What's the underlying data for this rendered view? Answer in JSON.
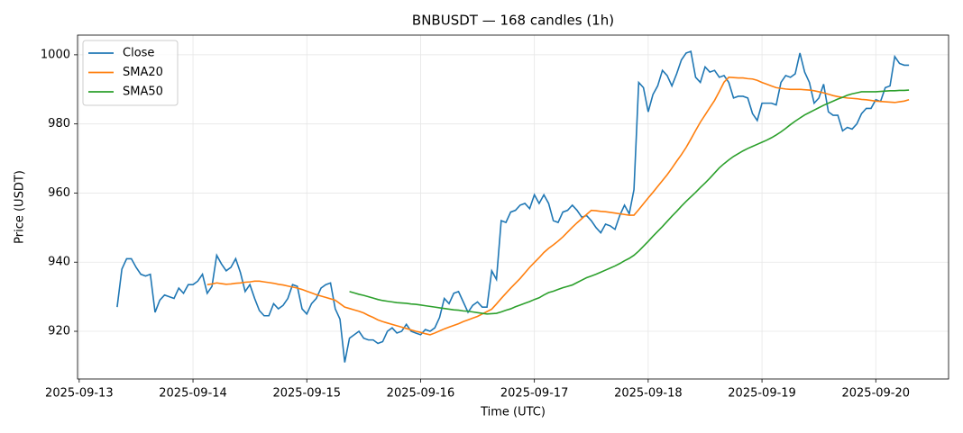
{
  "chart_data": {
    "type": "line",
    "title": "BNBUSDT — 168 candles (1h)",
    "x_label": "Time (UTC)",
    "y_label": "Price (USDT)",
    "x": [
      "2025-09-13 08:00",
      "2025-09-13 09:00",
      "2025-09-13 10:00",
      "2025-09-13 11:00",
      "2025-09-13 12:00",
      "2025-09-13 13:00",
      "2025-09-13 14:00",
      "2025-09-13 15:00",
      "2025-09-13 16:00",
      "2025-09-13 17:00",
      "2025-09-13 18:00",
      "2025-09-13 19:00",
      "2025-09-13 20:00",
      "2025-09-13 21:00",
      "2025-09-13 22:00",
      "2025-09-13 23:00",
      "2025-09-14 00:00",
      "2025-09-14 01:00",
      "2025-09-14 02:00",
      "2025-09-14 03:00",
      "2025-09-14 04:00",
      "2025-09-14 05:00",
      "2025-09-14 06:00",
      "2025-09-14 07:00",
      "2025-09-14 08:00",
      "2025-09-14 09:00",
      "2025-09-14 10:00",
      "2025-09-14 11:00",
      "2025-09-14 12:00",
      "2025-09-14 13:00",
      "2025-09-14 14:00",
      "2025-09-14 15:00",
      "2025-09-14 16:00",
      "2025-09-14 17:00",
      "2025-09-14 18:00",
      "2025-09-14 19:00",
      "2025-09-14 20:00",
      "2025-09-14 21:00",
      "2025-09-14 22:00",
      "2025-09-14 23:00",
      "2025-09-15 00:00",
      "2025-09-15 01:00",
      "2025-09-15 02:00",
      "2025-09-15 03:00",
      "2025-09-15 04:00",
      "2025-09-15 05:00",
      "2025-09-15 06:00",
      "2025-09-15 07:00",
      "2025-09-15 08:00",
      "2025-09-15 09:00",
      "2025-09-15 10:00",
      "2025-09-15 11:00",
      "2025-09-15 12:00",
      "2025-09-15 13:00",
      "2025-09-15 14:00",
      "2025-09-15 15:00",
      "2025-09-15 16:00",
      "2025-09-15 17:00",
      "2025-09-15 18:00",
      "2025-09-15 19:00",
      "2025-09-15 20:00",
      "2025-09-15 21:00",
      "2025-09-15 22:00",
      "2025-09-15 23:00",
      "2025-09-16 00:00",
      "2025-09-16 01:00",
      "2025-09-16 02:00",
      "2025-09-16 03:00",
      "2025-09-16 04:00",
      "2025-09-16 05:00",
      "2025-09-16 06:00",
      "2025-09-16 07:00",
      "2025-09-16 08:00",
      "2025-09-16 09:00",
      "2025-09-16 10:00",
      "2025-09-16 11:00",
      "2025-09-16 12:00",
      "2025-09-16 13:00",
      "2025-09-16 14:00",
      "2025-09-16 15:00",
      "2025-09-16 16:00",
      "2025-09-16 17:00",
      "2025-09-16 18:00",
      "2025-09-16 19:00",
      "2025-09-16 20:00",
      "2025-09-16 21:00",
      "2025-09-16 22:00",
      "2025-09-16 23:00",
      "2025-09-17 00:00",
      "2025-09-17 01:00",
      "2025-09-17 02:00",
      "2025-09-17 03:00",
      "2025-09-17 04:00",
      "2025-09-17 05:00",
      "2025-09-17 06:00",
      "2025-09-17 07:00",
      "2025-09-17 08:00",
      "2025-09-17 09:00",
      "2025-09-17 10:00",
      "2025-09-17 11:00",
      "2025-09-17 12:00",
      "2025-09-17 13:00",
      "2025-09-17 14:00",
      "2025-09-17 15:00",
      "2025-09-17 16:00",
      "2025-09-17 17:00",
      "2025-09-17 18:00",
      "2025-09-17 19:00",
      "2025-09-17 20:00",
      "2025-09-17 21:00",
      "2025-09-17 22:00",
      "2025-09-17 23:00",
      "2025-09-18 00:00",
      "2025-09-18 01:00",
      "2025-09-18 02:00",
      "2025-09-18 03:00",
      "2025-09-18 04:00",
      "2025-09-18 05:00",
      "2025-09-18 06:00",
      "2025-09-18 07:00",
      "2025-09-18 08:00",
      "2025-09-18 09:00",
      "2025-09-18 10:00",
      "2025-09-18 11:00",
      "2025-09-18 12:00",
      "2025-09-18 13:00",
      "2025-09-18 14:00",
      "2025-09-18 15:00",
      "2025-09-18 16:00",
      "2025-09-18 17:00",
      "2025-09-18 18:00",
      "2025-09-18 19:00",
      "2025-09-18 20:00",
      "2025-09-18 21:00",
      "2025-09-18 22:00",
      "2025-09-18 23:00",
      "2025-09-19 00:00",
      "2025-09-19 01:00",
      "2025-09-19 02:00",
      "2025-09-19 03:00",
      "2025-09-19 04:00",
      "2025-09-19 05:00",
      "2025-09-19 06:00",
      "2025-09-19 07:00",
      "2025-09-19 08:00",
      "2025-09-19 09:00",
      "2025-09-19 10:00",
      "2025-09-19 11:00",
      "2025-09-19 12:00",
      "2025-09-19 13:00",
      "2025-09-19 14:00",
      "2025-09-19 15:00",
      "2025-09-19 16:00",
      "2025-09-19 17:00",
      "2025-09-19 18:00",
      "2025-09-19 19:00",
      "2025-09-19 20:00",
      "2025-09-19 21:00",
      "2025-09-19 22:00",
      "2025-09-19 23:00",
      "2025-09-20 00:00",
      "2025-09-20 01:00",
      "2025-09-20 02:00",
      "2025-09-20 03:00",
      "2025-09-20 04:00",
      "2025-09-20 05:00",
      "2025-09-20 06:00",
      "2025-09-20 07:00"
    ],
    "series": [
      {
        "name": "Close",
        "color": "#1f77b4",
        "values": [
          927,
          938,
          941,
          941,
          938.5,
          936.5,
          936,
          936.5,
          925.5,
          929,
          930.5,
          930,
          929.5,
          932.5,
          931,
          933.5,
          933.5,
          934.5,
          936.5,
          931,
          933,
          942,
          939.5,
          937.5,
          938.5,
          941,
          937,
          931.5,
          933.5,
          929.5,
          926,
          924.5,
          924.5,
          928,
          926.5,
          927.5,
          929.5,
          933.5,
          933,
          926.5,
          925,
          928,
          929.5,
          932.5,
          933.5,
          934,
          926.5,
          923.5,
          911,
          918,
          919,
          920,
          918,
          917.5,
          917.5,
          916.5,
          917,
          920,
          921,
          919.5,
          920,
          922,
          920,
          919.5,
          919,
          920.5,
          920,
          921,
          924,
          929.5,
          928,
          931,
          931.5,
          928.5,
          925.5,
          927.5,
          928.5,
          927,
          927,
          937.5,
          935,
          952,
          951.5,
          954.5,
          955,
          956.5,
          957,
          955.5,
          959.5,
          957,
          959.5,
          957,
          952,
          951.5,
          954.5,
          955,
          956.5,
          955,
          953,
          953.5,
          952,
          950,
          948.5,
          951,
          950.5,
          949.5,
          953.5,
          956.5,
          954,
          961,
          992,
          990.5,
          983.5,
          988.5,
          991,
          995.5,
          994,
          991,
          994.5,
          998.5,
          1000.5,
          1001,
          993.5,
          992,
          996.5,
          995,
          995.5,
          993.5,
          994,
          992,
          987.5,
          988,
          988,
          987.5,
          983,
          981,
          986,
          986,
          986,
          985.5,
          992,
          994,
          993.5,
          994.5,
          1000.5,
          995,
          992,
          986,
          987.5,
          991.5,
          983.5,
          982.5,
          982.5,
          978,
          979,
          978.5,
          980,
          983,
          984.5,
          984.5,
          987,
          986.5,
          990.5,
          991,
          999.5,
          997.5,
          997,
          997
        ]
      },
      {
        "name": "SMA20",
        "color": "#ff7f0e",
        "values": [
          null,
          null,
          null,
          null,
          null,
          null,
          null,
          null,
          null,
          null,
          null,
          null,
          null,
          null,
          null,
          null,
          null,
          null,
          null,
          933.5,
          933.7,
          934,
          933.8,
          933.6,
          933.7,
          933.9,
          934,
          934.2,
          934.3,
          934.5,
          934.5,
          934.3,
          934.1,
          933.9,
          933.6,
          933.4,
          933.1,
          932.8,
          932.5,
          932.1,
          931.6,
          931.1,
          930.6,
          930.2,
          929.8,
          929.4,
          929,
          928,
          927,
          926.6,
          926.2,
          925.8,
          925.3,
          924.6,
          924,
          923.3,
          922.8,
          922.4,
          922,
          921.6,
          921.2,
          920.8,
          920.4,
          920,
          919.7,
          919.3,
          919,
          919.5,
          920.1,
          920.7,
          921.2,
          921.7,
          922.2,
          922.8,
          923.3,
          923.8,
          924.3,
          925,
          925.7,
          926.4,
          927.9,
          929.5,
          931,
          932.5,
          933.9,
          935.3,
          936.9,
          938.5,
          939.9,
          941.3,
          942.8,
          944,
          945,
          946.1,
          947.3,
          948.7,
          950.1,
          951.4,
          952.6,
          953.8,
          955,
          954.9,
          954.7,
          954.6,
          954.4,
          954.2,
          954,
          953.8,
          953.6,
          953.6,
          955.2,
          956.9,
          958.6,
          960.2,
          961.9,
          963.6,
          965.3,
          967.2,
          969.2,
          971.1,
          973.2,
          975.6,
          978.1,
          980.5,
          982.6,
          984.7,
          986.8,
          989.4,
          992.1,
          993.5,
          993.4,
          993.3,
          993.3,
          993.1,
          993,
          992.6,
          992,
          991.5,
          991,
          990.5,
          990.3,
          990.1,
          990,
          990,
          990,
          989.9,
          989.8,
          989.6,
          989.3,
          989,
          988.6,
          988.2,
          987.9,
          987.7,
          987.5,
          987.4,
          987.3,
          987.1,
          987,
          986.8,
          986.6,
          986.5,
          986.4,
          986.3,
          986.2,
          986.4,
          986.6,
          987
        ]
      },
      {
        "name": "SMA50",
        "color": "#2ca02c",
        "values": [
          null,
          null,
          null,
          null,
          null,
          null,
          null,
          null,
          null,
          null,
          null,
          null,
          null,
          null,
          null,
          null,
          null,
          null,
          null,
          null,
          null,
          null,
          null,
          null,
          null,
          null,
          null,
          null,
          null,
          null,
          null,
          null,
          null,
          null,
          null,
          null,
          null,
          null,
          null,
          null,
          null,
          null,
          null,
          null,
          null,
          null,
          null,
          null,
          null,
          931.5,
          931.1,
          930.7,
          930.4,
          930,
          929.6,
          929.2,
          928.9,
          928.7,
          928.5,
          928.3,
          928.2,
          928.1,
          927.9,
          927.8,
          927.6,
          927.4,
          927.2,
          927,
          926.8,
          926.6,
          926.4,
          926.2,
          926.1,
          925.9,
          925.8,
          925.6,
          925.4,
          925.2,
          925,
          925.1,
          925.2,
          925.6,
          926.1,
          926.5,
          927.1,
          927.6,
          928.1,
          928.6,
          929.2,
          929.7,
          930.5,
          931.2,
          931.6,
          932.1,
          932.6,
          933,
          933.4,
          934.1,
          934.8,
          935.5,
          936,
          936.5,
          937.1,
          937.7,
          938.3,
          938.9,
          939.6,
          940.4,
          941.1,
          942,
          943.2,
          944.6,
          946,
          947.5,
          948.9,
          950.3,
          951.8,
          953.3,
          954.7,
          956.2,
          957.6,
          958.9,
          960.2,
          961.6,
          962.9,
          964.3,
          965.8,
          967.3,
          968.5,
          969.6,
          970.6,
          971.4,
          972.2,
          972.9,
          973.5,
          974.1,
          974.7,
          975.3,
          976,
          976.8,
          977.7,
          978.7,
          979.8,
          980.8,
          981.7,
          982.6,
          983.3,
          984,
          984.7,
          985.4,
          986,
          986.6,
          987.2,
          987.7,
          988.3,
          988.7,
          989,
          989.3,
          989.3,
          989.3,
          989.3,
          989.4,
          989.5,
          989.6,
          989.6,
          989.7,
          989.7,
          989.8
        ]
      }
    ],
    "xlim": [
      "2025-09-12 23:39",
      "2025-09-20 15:21"
    ],
    "xticks": [
      "2025-09-13",
      "2025-09-14",
      "2025-09-15",
      "2025-09-16",
      "2025-09-17",
      "2025-09-18",
      "2025-09-19",
      "2025-09-20"
    ],
    "ylim": [
      906.2,
      1005.7
    ],
    "yticks": [
      920,
      940,
      960,
      980,
      1000
    ],
    "grid": true,
    "legend": "upper left"
  }
}
